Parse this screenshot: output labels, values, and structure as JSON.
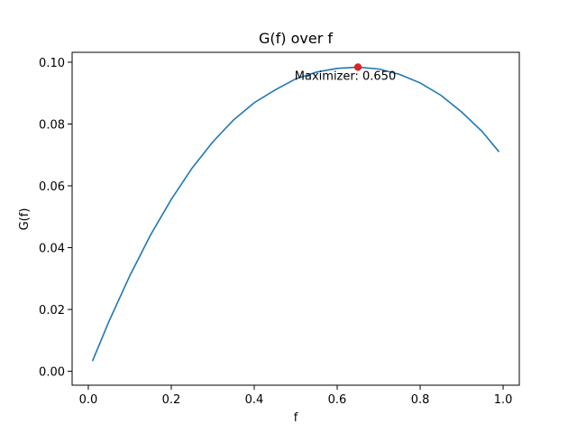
{
  "chart_data": {
    "type": "line",
    "title": "G(f) over f",
    "xlabel": "f",
    "ylabel": "G(f)",
    "xlim": [
      -0.039,
      1.039
    ],
    "ylim": [
      -0.0045,
      0.1032
    ],
    "xticks": [
      0.0,
      0.2,
      0.4,
      0.6,
      0.8,
      1.0
    ],
    "xtick_labels": [
      "0.0",
      "0.2",
      "0.4",
      "0.6",
      "0.8",
      "1.0"
    ],
    "yticks": [
      0.0,
      0.02,
      0.04,
      0.06,
      0.08,
      0.1
    ],
    "ytick_labels": [
      "0.00",
      "0.02",
      "0.04",
      "0.06",
      "0.08",
      "0.10"
    ],
    "grid": false,
    "series": [
      {
        "color": "#1f77b4",
        "x": [
          0.01,
          0.05,
          0.1,
          0.15,
          0.2,
          0.25,
          0.3,
          0.35,
          0.4,
          0.45,
          0.5,
          0.55,
          0.6,
          0.65,
          0.7,
          0.75,
          0.8,
          0.85,
          0.9,
          0.95,
          0.99
        ],
        "y": [
          0.0033,
          0.0162,
          0.0309,
          0.0441,
          0.0556,
          0.0657,
          0.0742,
          0.0813,
          0.0869,
          0.091,
          0.0946,
          0.0968,
          0.098,
          0.0984,
          0.0978,
          0.0961,
          0.0933,
          0.0893,
          0.0839,
          0.0775,
          0.071
        ]
      }
    ],
    "marker": {
      "x": 0.65,
      "y": 0.0984,
      "color": "#d62728"
    },
    "annotation": {
      "text": "Maximizer: 0.650",
      "x": 0.65,
      "y": 0.0984
    }
  }
}
